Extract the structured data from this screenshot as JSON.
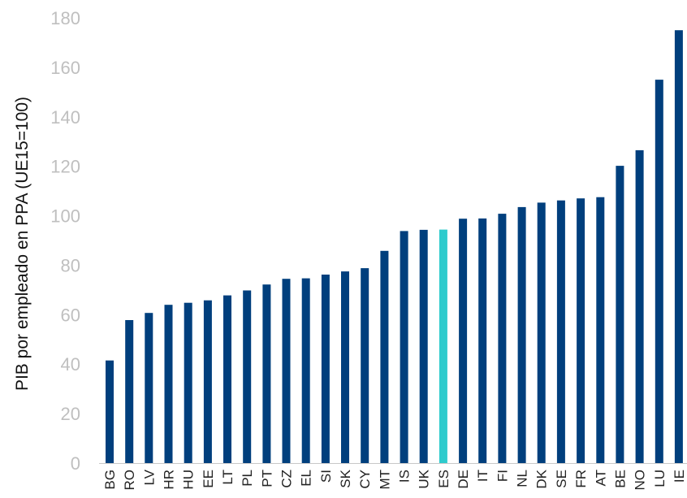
{
  "chart_data": {
    "type": "bar",
    "ylabel": "PIB por empleado en PPA (UE15=100)",
    "xlabel": "",
    "ylim": [
      0,
      180
    ],
    "yticks": [
      0,
      20,
      40,
      60,
      80,
      100,
      120,
      140,
      160,
      180
    ],
    "grid": false,
    "legend": "none",
    "categories": [
      "BG",
      "RO",
      "LV",
      "HR",
      "HU",
      "EE",
      "LT",
      "PL",
      "PT",
      "CZ",
      "EL",
      "SI",
      "SK",
      "CY",
      "MT",
      "IS",
      "UK",
      "ES",
      "DE",
      "IT",
      "FI",
      "NL",
      "DK",
      "SE",
      "FR",
      "AT",
      "BE",
      "NO",
      "LU",
      "IE"
    ],
    "values": [
      41.5,
      57.8,
      60.7,
      64.0,
      64.8,
      65.8,
      67.8,
      69.8,
      72.2,
      74.5,
      74.7,
      76.2,
      77.5,
      78.8,
      85.8,
      93.8,
      94.3,
      94.4,
      98.8,
      98.9,
      100.8,
      103.5,
      105.3,
      106.2,
      107.0,
      107.5,
      120.2,
      126.5,
      155.0,
      175.0
    ],
    "highlight_category": "ES",
    "colors": {
      "bar": "#003f7d",
      "highlight": "#2ecbcd",
      "axis": "#c8c8c8",
      "tick_text": "#bfbfbf"
    }
  }
}
